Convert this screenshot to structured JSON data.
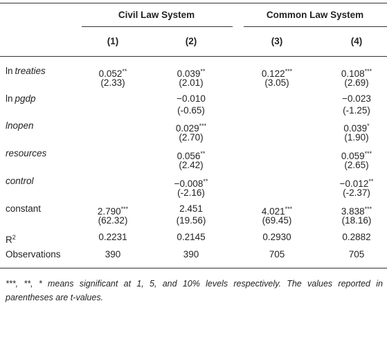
{
  "table": {
    "groups": [
      "Civil Law System",
      "Common Law System"
    ],
    "columns": [
      "(1)",
      "(2)",
      "(3)",
      "(4)"
    ],
    "rows": [
      {
        "label": [
          {
            "text": "ln"
          },
          {
            "text": "treaties",
            "style": "italic"
          }
        ],
        "cells": [
          {
            "value": "0.052",
            "stars": "**",
            "t": "(2.33)"
          },
          {
            "value": "0.039",
            "stars": "**",
            "t": "(2.01)"
          },
          {
            "value": "0.122",
            "stars": "***",
            "t": "(3.05)"
          },
          {
            "value": "0.108",
            "stars": "***",
            "t": "(2.69)"
          }
        ]
      },
      {
        "label": [
          {
            "text": "ln"
          },
          {
            "text": "pgdp",
            "style": "italic"
          }
        ],
        "cells": [
          null,
          {
            "value": "−0.010",
            "t": "(-0.65)"
          },
          null,
          {
            "value": "−0.023",
            "t": "(-1.25)"
          }
        ]
      },
      {
        "label": [
          {
            "text": "lnopen",
            "style": "italic"
          }
        ],
        "cells": [
          null,
          {
            "value": "0.029",
            "stars": "***",
            "t": "(2.70)"
          },
          null,
          {
            "value": "0.039",
            "stars": "*",
            "t": "(1.90)"
          }
        ]
      },
      {
        "label": [
          {
            "text": "resources",
            "style": "italic"
          }
        ],
        "cells": [
          null,
          {
            "value": "0.056",
            "stars": "**",
            "t": "(2.42)"
          },
          null,
          {
            "value": "0.059",
            "stars": "***",
            "t": "(2.65)"
          }
        ]
      },
      {
        "label": [
          {
            "text": "control",
            "style": "italic"
          }
        ],
        "cells": [
          null,
          {
            "value": "−0.008",
            "stars": "**",
            "t": "(-2.16)"
          },
          null,
          {
            "value": "−0.012",
            "stars": "**",
            "t": "(-2.37)"
          }
        ]
      },
      {
        "label": [
          {
            "text": "constant"
          }
        ],
        "cells": [
          {
            "value": "2.790",
            "stars": "***",
            "t": "(62.32)"
          },
          {
            "value": "2.451",
            "t": "(19.56)"
          },
          {
            "value": "4.021",
            "stars": "***",
            "t": "(69.45)"
          },
          {
            "value": "3.838",
            "stars": "***",
            "t": "(18.16)"
          }
        ]
      },
      {
        "label": [
          {
            "text": "R"
          },
          {
            "text": "2",
            "style": "sup"
          }
        ],
        "cells": [
          {
            "value": "0.2231"
          },
          {
            "value": "0.2145"
          },
          {
            "value": "0.2930"
          },
          {
            "value": "0.2882"
          }
        ]
      },
      {
        "label": [
          {
            "text": "Observations"
          }
        ],
        "cells": [
          {
            "value": "390"
          },
          {
            "value": "390"
          },
          {
            "value": "705"
          },
          {
            "value": "705"
          }
        ]
      }
    ],
    "footnote": "***, **, * means significant at 1, 5, and 10% levels respectively. The values reported in parentheses are t-values."
  }
}
